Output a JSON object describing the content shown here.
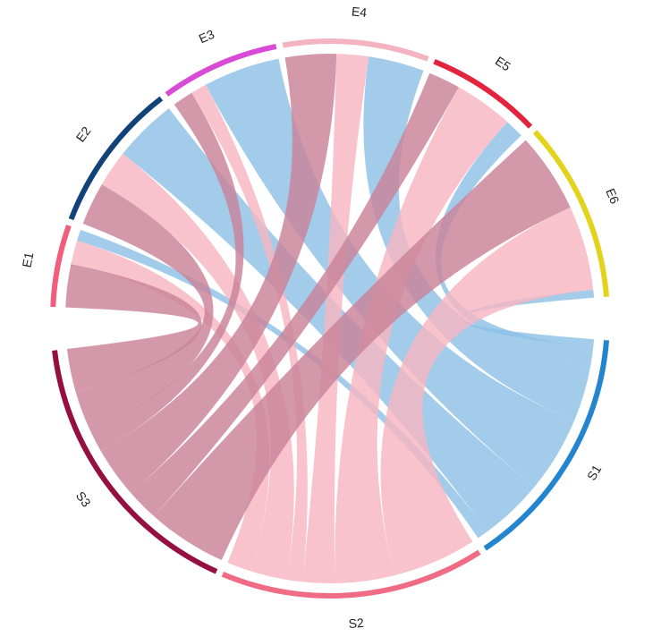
{
  "chart_data": {
    "type": "chord",
    "title": "",
    "sectors": [
      {
        "name": "S1",
        "color": "#2385cf",
        "group": "source"
      },
      {
        "name": "S2",
        "color": "#f06b84",
        "group": "source"
      },
      {
        "name": "S3",
        "color": "#96103f",
        "group": "source"
      },
      {
        "name": "E1",
        "color": "#f25c7d",
        "group": "target"
      },
      {
        "name": "E2",
        "color": "#12427a",
        "group": "target"
      },
      {
        "name": "E3",
        "color": "#d84bd6",
        "group": "target"
      },
      {
        "name": "E4",
        "color": "#f3b3c0",
        "group": "target"
      },
      {
        "name": "E5",
        "color": "#e2243f",
        "group": "target"
      },
      {
        "name": "E6",
        "color": "#e3d31d",
        "group": "target"
      }
    ],
    "ribbon_colors": {
      "S1": "#8fc1e6",
      "S2": "#f7b6c2",
      "S3": "#c98399"
    },
    "sources": [
      "S1",
      "S2",
      "S3"
    ],
    "targets": [
      "E1",
      "E2",
      "E3",
      "E4",
      "E5",
      "E6"
    ],
    "matrix": [
      [
        0.7,
        4.0,
        4.8,
        3.5,
        1.2,
        0.5
      ],
      [
        1.5,
        2.3,
        1.0,
        2.0,
        3.7,
        5.3
      ],
      [
        2.7,
        2.7,
        1.3,
        3.2,
        2.0,
        5.0
      ]
    ]
  }
}
